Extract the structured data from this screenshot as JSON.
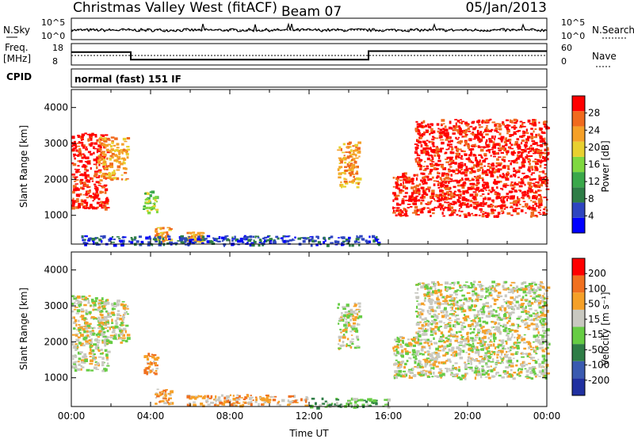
{
  "header": {
    "title": "Christmas Valley West (fitACF)",
    "beam": "Beam 07",
    "date": "05/Jan/2013"
  },
  "top_panels": {
    "nsky_label": "N.Sky",
    "nsky_ticks": [
      "10^5",
      "10^0"
    ],
    "nsearch_label": "N.Search",
    "nsearch_ticks": [
      "10^5",
      "10^0"
    ],
    "freq_label_1": "Freq.",
    "freq_label_2": "[MHz]",
    "freq_ticks": [
      "18",
      "8"
    ],
    "nave_label": "Nave",
    "nave_ticks": [
      "60",
      "0"
    ],
    "cpid_label": "CPID",
    "cpid_value": "normal (fast) 151 IF"
  },
  "chart_data": [
    {
      "type": "line",
      "panel": "frequency",
      "ylabel": "Freq. [MHz]",
      "ylim": [
        8,
        18
      ],
      "x_hours": [
        0,
        3,
        3,
        15,
        15,
        24
      ],
      "freq_mhz": [
        14,
        14,
        10.5,
        10.5,
        14.5,
        14.5
      ]
    },
    {
      "type": "heatmap",
      "panel": "power",
      "ylabel": "Slant Range [km]",
      "ylim": [
        200,
        4500
      ],
      "yticks": [
        "1000",
        "2000",
        "3000",
        "4000"
      ],
      "colorbar_label": "Power [dB]",
      "colorbar_ticks": [
        "4",
        "8",
        "12",
        "16",
        "20",
        "24",
        "28"
      ],
      "colors": [
        "#0000ff",
        "#2e45c0",
        "#2e7d46",
        "#3aa84a",
        "#7fd840",
        "#e8d030",
        "#f5a028",
        "#f06a1e",
        "#ff0000"
      ],
      "regions": [
        {
          "t0": 0.0,
          "t1": 1.8,
          "r0": 1200,
          "r1": 3300,
          "level": 8
        },
        {
          "t0": 1.3,
          "t1": 2.8,
          "r0": 2000,
          "r1": 3200,
          "level": 6
        },
        {
          "t0": 3.6,
          "t1": 4.3,
          "r0": 1100,
          "r1": 1700,
          "level": 4
        },
        {
          "t0": 4.2,
          "t1": 5.0,
          "r0": 300,
          "r1": 700,
          "level": 6
        },
        {
          "t0": 5.8,
          "t1": 6.6,
          "r0": 300,
          "r1": 550,
          "level": 6
        },
        {
          "t0": 0.5,
          "t1": 15.5,
          "r0": 200,
          "r1": 450,
          "level": 1
        },
        {
          "t0": 13.4,
          "t1": 14.5,
          "r0": 1800,
          "r1": 3100,
          "level": 6
        },
        {
          "t0": 16.2,
          "t1": 24.0,
          "r0": 1000,
          "r1": 2200,
          "level": 8
        },
        {
          "t0": 17.3,
          "t1": 24.0,
          "r0": 2200,
          "r1": 3700,
          "level": 8
        }
      ]
    },
    {
      "type": "heatmap",
      "panel": "velocity",
      "ylabel": "Slant Range [km]",
      "ylim": [
        200,
        4500
      ],
      "yticks": [
        "1000",
        "2000",
        "3000",
        "4000"
      ],
      "xlabel": "Time UT",
      "xticks": [
        "00:00",
        "04:00",
        "08:00",
        "12:00",
        "16:00",
        "20:00",
        "00:00"
      ],
      "colorbar_label": "Velocity [m s⁻¹]",
      "colorbar_ticks": [
        "200",
        "100",
        "50",
        "15",
        "-15",
        "-50",
        "-100",
        "-200"
      ],
      "colors": [
        "#2030a0",
        "#3a5ab0",
        "#2e7d46",
        "#66cc44",
        "#c8c8c0",
        "#f5a028",
        "#f07020",
        "#ff0000"
      ],
      "regions": [
        {
          "t0": 0.0,
          "t1": 1.8,
          "r0": 1200,
          "r1": 3300,
          "level": 4
        },
        {
          "t0": 1.3,
          "t1": 2.8,
          "r0": 2000,
          "r1": 3200,
          "level": 4
        },
        {
          "t0": 3.6,
          "t1": 4.3,
          "r0": 1100,
          "r1": 1700,
          "level": 5
        },
        {
          "t0": 4.2,
          "t1": 5.0,
          "r0": 300,
          "r1": 700,
          "level": 5
        },
        {
          "t0": 5.8,
          "t1": 12.0,
          "r0": 250,
          "r1": 550,
          "level": 5
        },
        {
          "t0": 12.0,
          "t1": 16.0,
          "r0": 200,
          "r1": 450,
          "level": 3
        },
        {
          "t0": 13.4,
          "t1": 14.5,
          "r0": 1800,
          "r1": 3100,
          "level": 4
        },
        {
          "t0": 16.2,
          "t1": 24.0,
          "r0": 1000,
          "r1": 2200,
          "level": 4
        },
        {
          "t0": 17.3,
          "t1": 24.0,
          "r0": 2200,
          "r1": 3700,
          "level": 4
        }
      ]
    }
  ]
}
